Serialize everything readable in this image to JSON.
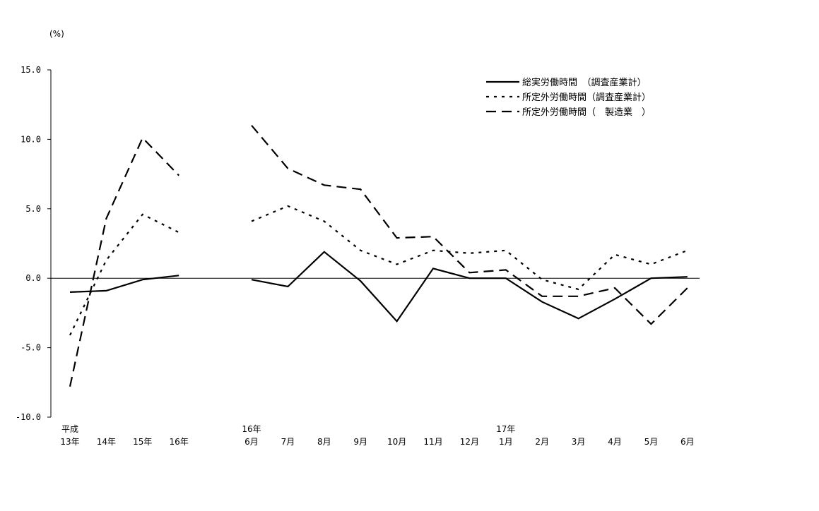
{
  "chart_data": {
    "type": "line",
    "unit_label": "(%)",
    "ylim": [
      -10,
      15
    ],
    "y_ticks": [
      "15.0",
      "10.0",
      "5.0",
      "0.0",
      "-5.0",
      "-10.0"
    ],
    "y_tick_values": [
      15,
      10,
      5,
      0,
      -5,
      -10
    ],
    "categories": [
      {
        "top": "平成",
        "bottom": "13年"
      },
      {
        "top": "",
        "bottom": "14年"
      },
      {
        "top": "",
        "bottom": "15年"
      },
      {
        "top": "",
        "bottom": "16年"
      },
      {
        "top": "",
        "bottom": ""
      },
      {
        "top": "16年",
        "bottom": "6月"
      },
      {
        "top": "",
        "bottom": "7月"
      },
      {
        "top": "",
        "bottom": "8月"
      },
      {
        "top": "",
        "bottom": "9月"
      },
      {
        "top": "",
        "bottom": "10月"
      },
      {
        "top": "",
        "bottom": "11月"
      },
      {
        "top": "",
        "bottom": "12月"
      },
      {
        "top": "17年",
        "bottom": "1月"
      },
      {
        "top": "",
        "bottom": "2月"
      },
      {
        "top": "",
        "bottom": "3月"
      },
      {
        "top": "",
        "bottom": "4月"
      },
      {
        "top": "",
        "bottom": "5月"
      },
      {
        "top": "",
        "bottom": "6月"
      }
    ],
    "series": [
      {
        "name": "総実労働時間　（調査産業計）",
        "style": "solid",
        "color": "#000000",
        "values": [
          -1.0,
          -0.9,
          -0.1,
          0.2,
          null,
          -0.1,
          -0.6,
          1.9,
          -0.2,
          -3.1,
          0.7,
          0.0,
          0.0,
          -1.7,
          -2.9,
          -1.5,
          0.0,
          0.1
        ]
      },
      {
        "name": "所定外労働時間（調査産業計）",
        "style": "dotted",
        "color": "#000000",
        "values": [
          -4.1,
          1.3,
          4.6,
          3.3,
          null,
          4.1,
          5.2,
          4.1,
          2.0,
          1.0,
          2.0,
          1.8,
          2.0,
          -0.1,
          -0.8,
          1.7,
          1.0,
          2.0
        ]
      },
      {
        "name": "所定外労働時間（　製造業　）",
        "style": "dashed",
        "color": "#000000",
        "values": [
          -7.8,
          4.3,
          10.1,
          7.4,
          null,
          11.0,
          7.9,
          6.7,
          6.4,
          2.9,
          3.0,
          0.4,
          0.6,
          -1.3,
          -1.3,
          -0.7,
          -3.3,
          -0.7
        ]
      }
    ],
    "legend_position": "top-right",
    "grid": false
  }
}
